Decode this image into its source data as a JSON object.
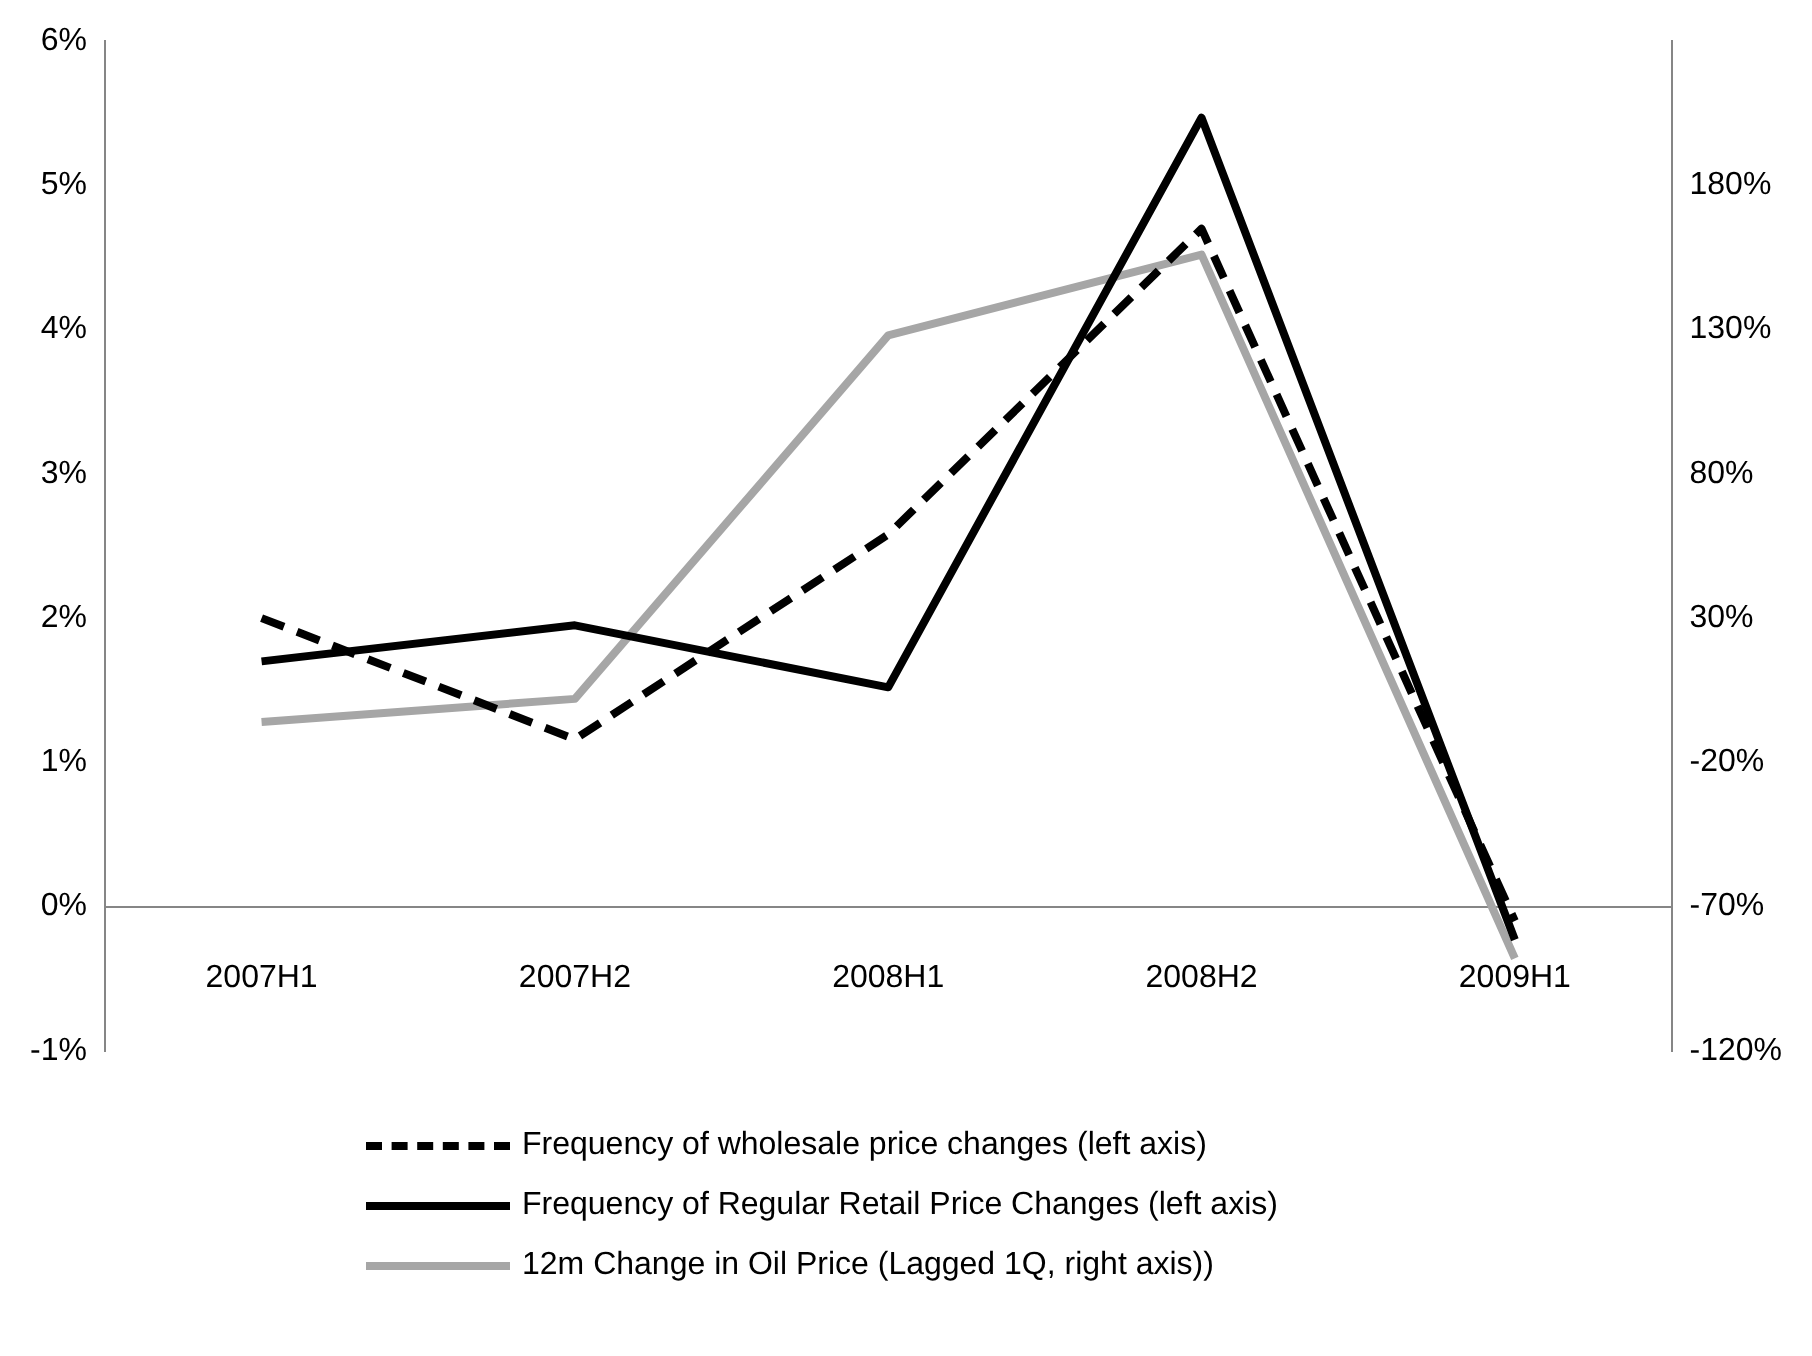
{
  "chart_data": {
    "type": "line",
    "categories": [
      "2007H1",
      "2007H2",
      "2008H1",
      "2008H2",
      "2009H1"
    ],
    "series": [
      {
        "name": "Frequency of wholesale price changes (left axis)",
        "color": "#000000",
        "line_style": "dashed",
        "values": [
          2.0,
          1.16,
          2.58,
          4.7,
          -0.1
        ]
      },
      {
        "name": "Frequency of Regular Retail Price Changes (left axis)",
        "color": "#000000",
        "line_style": "solid",
        "values": [
          1.7,
          1.95,
          1.52,
          5.47,
          -0.23
        ]
      },
      {
        "name": "12m Change in Oil Price (Lagged 1Q, right axis))",
        "color": "#a6a6a6",
        "line_style": "solid",
        "axis": "y2",
        "values": [
          -6,
          2,
          128,
          156,
          -88
        ]
      }
    ],
    "ylim": [
      -1,
      6
    ],
    "yticks": [
      {
        "value": -1,
        "label": "-1%"
      },
      {
        "value": 0,
        "label": "0%"
      },
      {
        "value": 1,
        "label": "1%"
      },
      {
        "value": 2,
        "label": "2%"
      },
      {
        "value": 3,
        "label": "3%"
      },
      {
        "value": 4,
        "label": "4%"
      },
      {
        "value": 5,
        "label": "5%"
      },
      {
        "value": 6,
        "label": "6%"
      }
    ],
    "y2lim": [
      -120,
      230
    ],
    "y2ticks": [
      {
        "value": -120,
        "label": "-120%"
      },
      {
        "value": -70,
        "label": "-70%"
      },
      {
        "value": -20,
        "label": "-20%"
      },
      {
        "value": 30,
        "label": "30%"
      },
      {
        "value": 80,
        "label": "80%"
      },
      {
        "value": 130,
        "label": "130%"
      },
      {
        "value": 180,
        "label": "180%"
      }
    ],
    "grid": false,
    "legend": "bottom",
    "marker": "none"
  }
}
